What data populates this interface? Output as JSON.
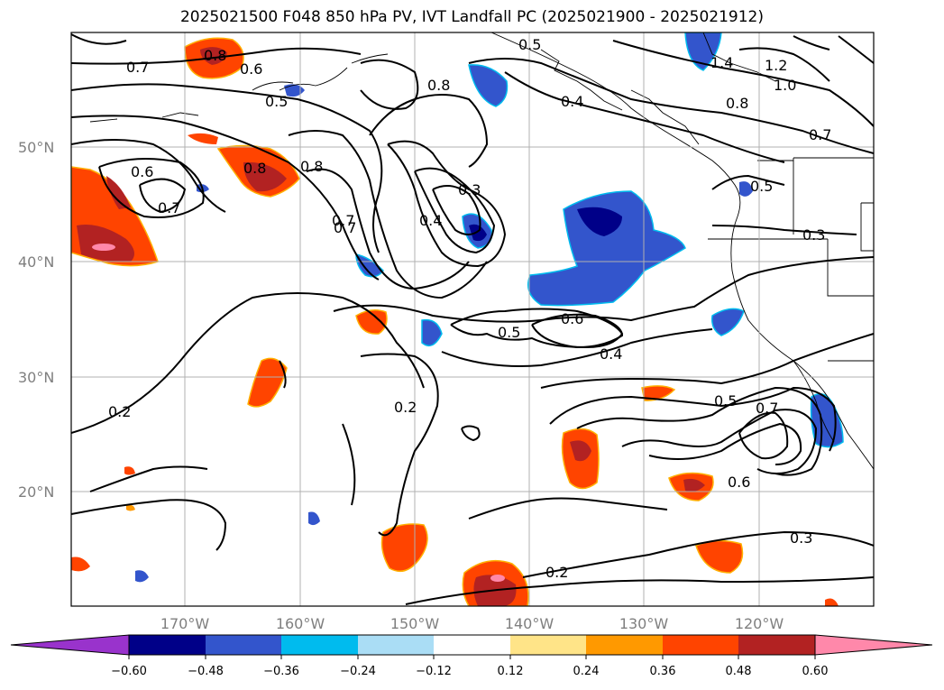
{
  "title": "2025021500 F048 850 hPa PV, IVT Landfall PC (2025021900 - 2025021912)",
  "latitude_labels": [
    "50°N",
    "40°N",
    "30°N",
    "20°N"
  ],
  "longitude_labels": [
    "170°W",
    "160°W",
    "150°W",
    "140°W",
    "130°W",
    "120°W"
  ],
  "contour_labels": [
    "0.7",
    "0.8",
    "0.6",
    "0.5",
    "0.5",
    "0.8",
    "0.4",
    "0.8",
    "0.7",
    "0.6",
    "0.7",
    "0.8",
    "0.7",
    "0.3",
    "0.4",
    "0.5",
    "0.6",
    "0.4",
    "0.2",
    "0.2",
    "0.5",
    "0.7",
    "0.6",
    "0.3",
    "0.2",
    "1.4",
    "1.2",
    "1.0",
    "0.8",
    "0.7",
    "0.5",
    "0.3"
  ],
  "colorbar": {
    "ticks": [
      "−0.60",
      "−0.48",
      "−0.36",
      "−0.24",
      "−0.12",
      "0.12",
      "0.24",
      "0.36",
      "0.48",
      "0.60"
    ],
    "colors": {
      "below_min": "#9933cc",
      "n060": "#000088",
      "n048": "#3355cc",
      "n036": "#00bbee",
      "n024": "#aaddf5",
      "zero": "#ffffff",
      "p012": "#ffe488",
      "p024": "#ff9900",
      "p036": "#ff4400",
      "p048": "#b22222",
      "above_max": "#ff88aa"
    }
  }
}
